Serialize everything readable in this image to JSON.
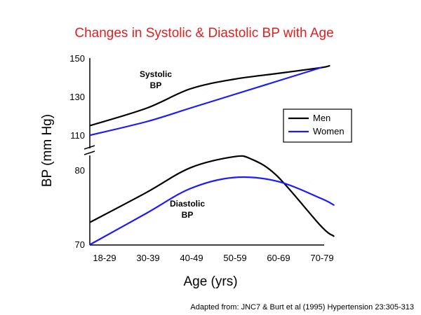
{
  "chart_data": {
    "type": "line",
    "title": "Changes in Systolic & Diastolic BP with Age",
    "xlabel": "Age (yrs)",
    "ylabel": "BP (mm Hg)",
    "categories": [
      "18-29",
      "30-39",
      "40-49",
      "50-59",
      "60-69",
      "70-79"
    ],
    "y_ticks": [
      150,
      130,
      110,
      80,
      70
    ],
    "axis_break": true,
    "legend": {
      "position": "right",
      "entries": [
        {
          "name": "Men",
          "color": "#000000"
        },
        {
          "name": "Women",
          "color": "#1a1aff"
        }
      ]
    },
    "annotations": [
      {
        "text_lines": [
          "Systolic",
          "BP"
        ]
      },
      {
        "text_lines": [
          "Diastolic",
          "BP"
        ]
      }
    ],
    "series": [
      {
        "name": "Men",
        "group": "systolic",
        "color": "#000000",
        "x": [
          0,
          1,
          2,
          3,
          4,
          5,
          5.2
        ],
        "values": [
          115,
          124,
          134,
          139,
          142,
          145,
          146
        ]
      },
      {
        "name": "Women",
        "group": "systolic",
        "color": "#1a1aff",
        "x": [
          0,
          1,
          2,
          3,
          4,
          5
        ],
        "values": [
          110,
          117,
          124,
          131,
          138,
          145
        ]
      },
      {
        "name": "Men",
        "group": "diastolic",
        "color": "#000000",
        "x": [
          0,
          1,
          2,
          3,
          3.4,
          4,
          5,
          5.3
        ],
        "values": [
          73,
          77,
          80.3,
          81.8,
          81.5,
          79.2,
          72.5,
          71.1
        ]
      },
      {
        "name": "Women",
        "group": "diastolic",
        "color": "#1a1aff",
        "x": [
          0,
          1,
          2,
          3,
          4,
          5,
          5.3
        ],
        "values": [
          70,
          74.2,
          77.5,
          79,
          78.5,
          76.2,
          75.3
        ]
      }
    ],
    "source": "Adapted from: JNC7 & Burt et al (1995) Hypertension 23:305-313",
    "title_color": "#e02020"
  }
}
